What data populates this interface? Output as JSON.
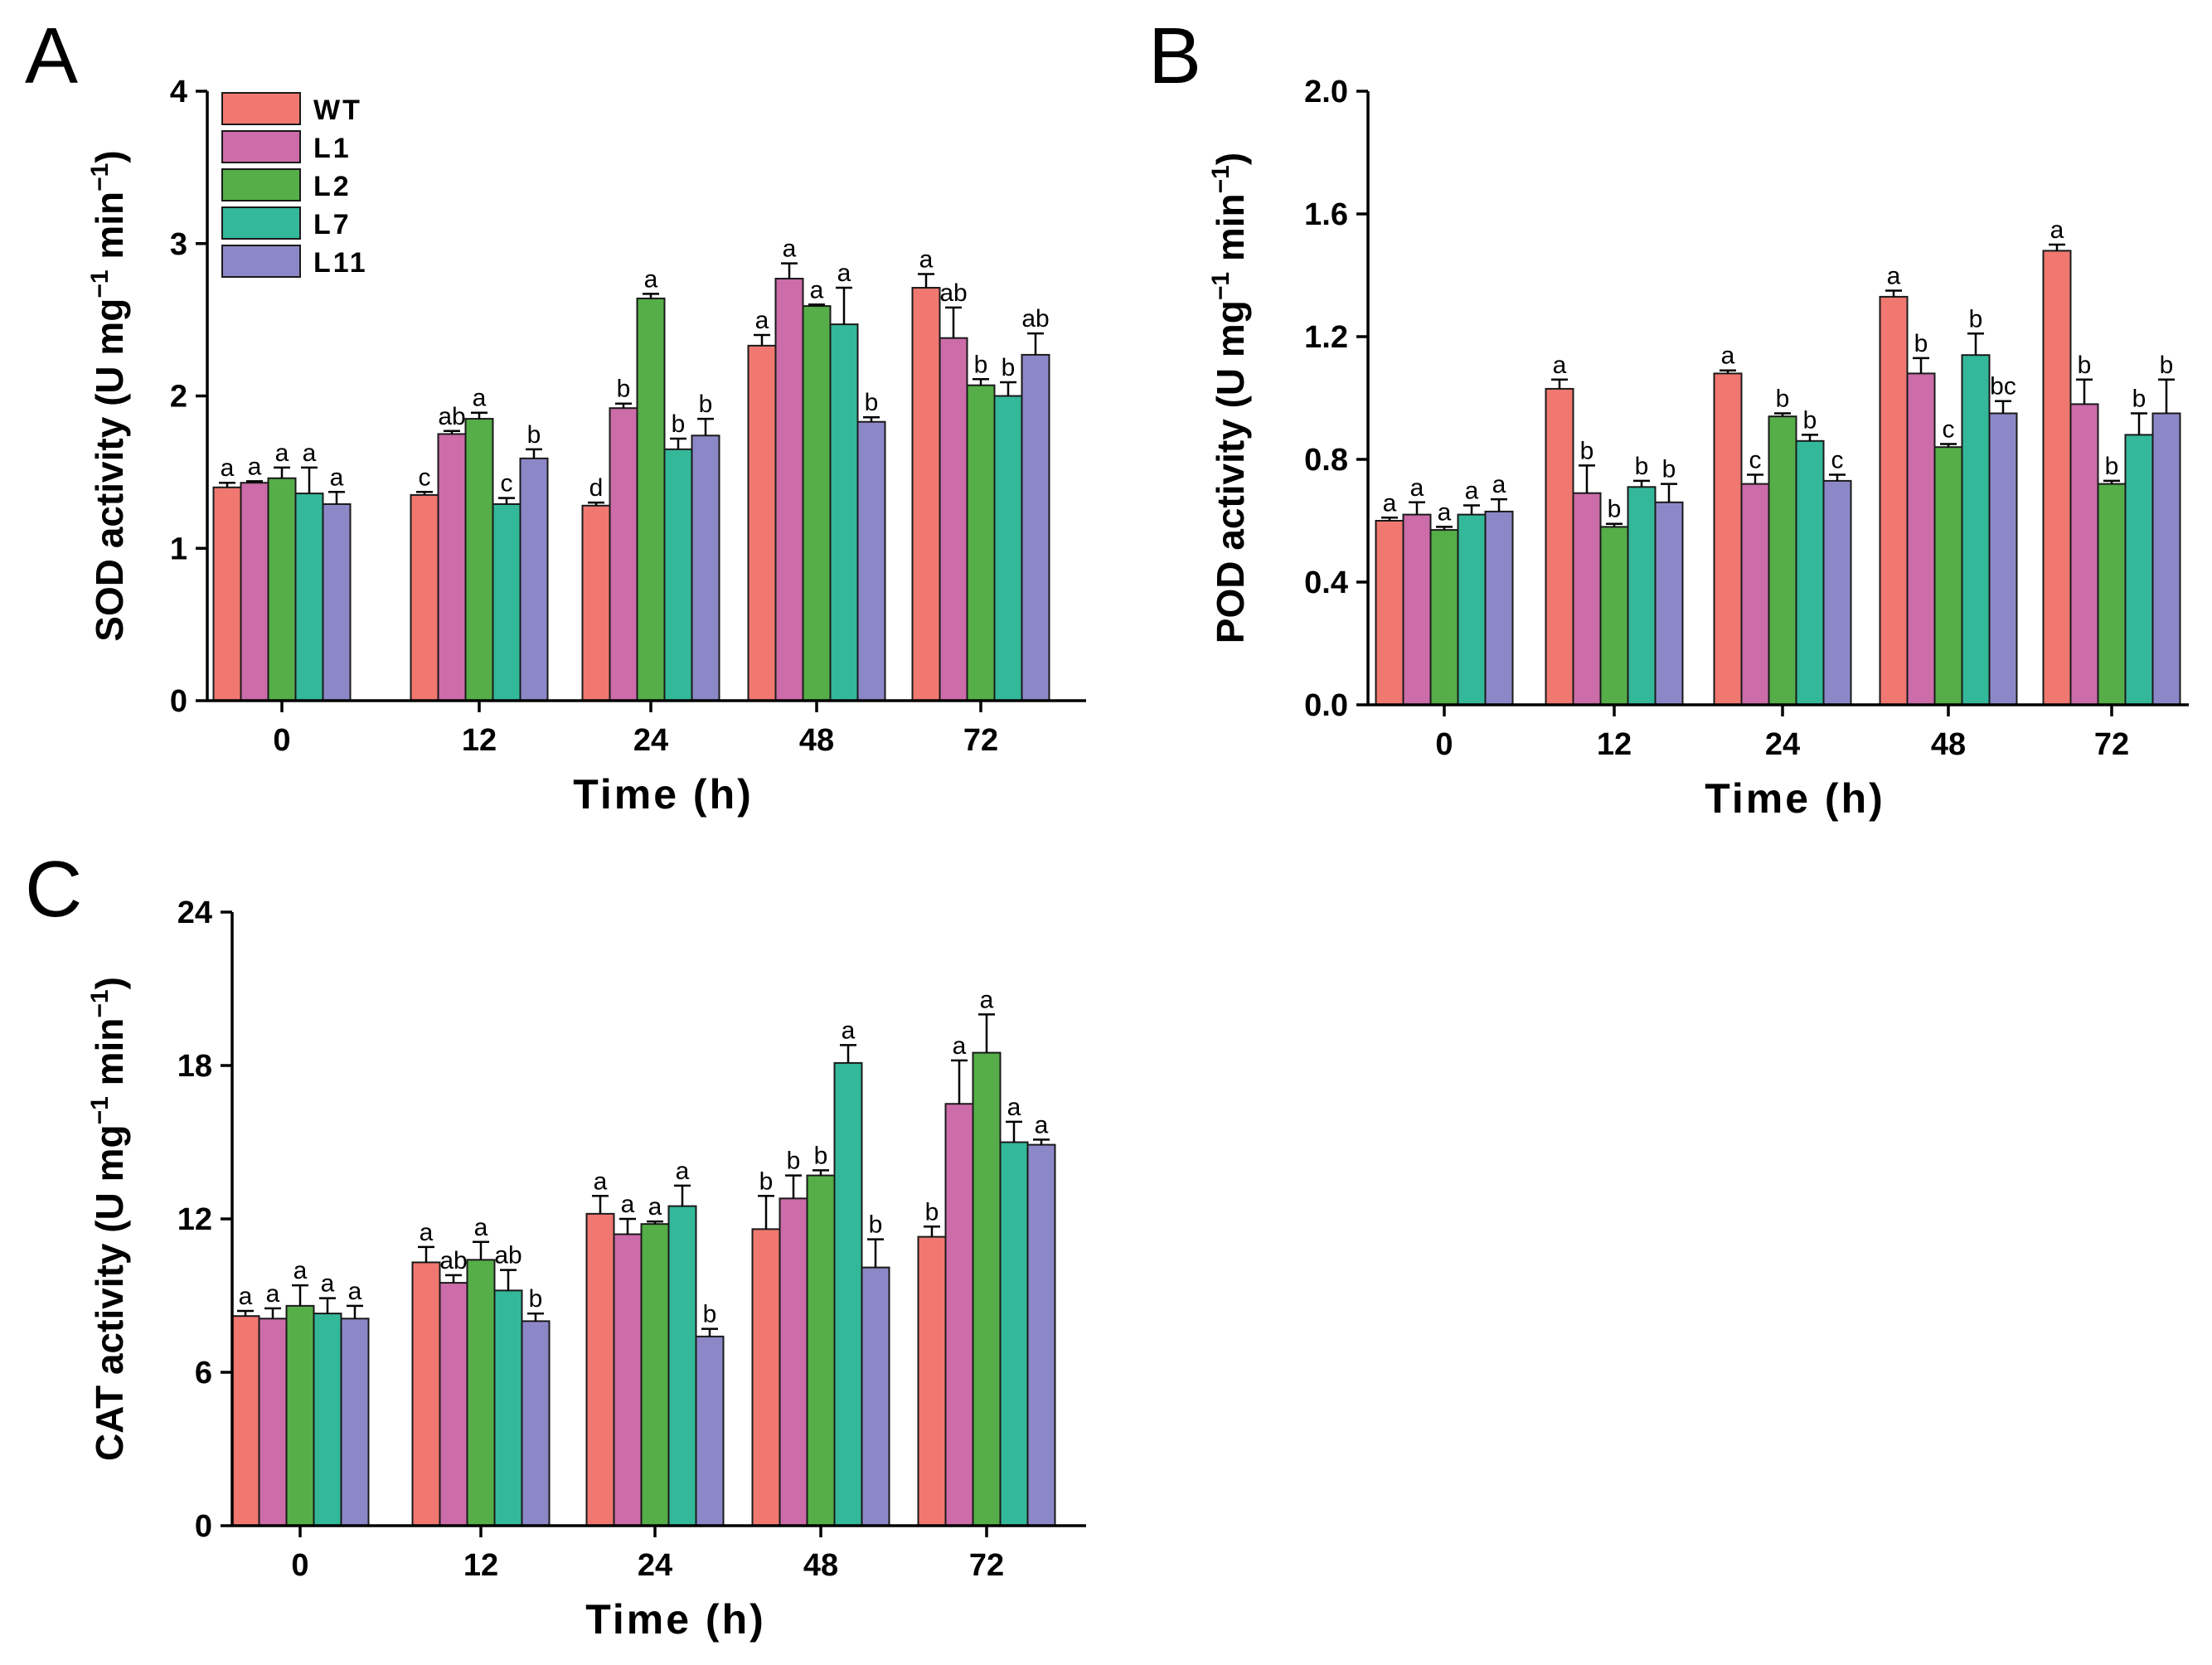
{
  "chart_data": [
    {
      "type": "bar",
      "panel": "A",
      "title": "",
      "xlabel": "Time (h)",
      "ylabel": "SOD activity (U mg",
      "ylabel_sup": "−1",
      "ylabel_mid": " min",
      "ylabel_tail": ")",
      "ylim": [
        0,
        4
      ],
      "yticks": [
        "0",
        "1",
        "2",
        "3",
        "4"
      ],
      "categories": [
        "0",
        "12",
        "24",
        "48",
        "72"
      ],
      "legend": "top-left",
      "series": [
        {
          "name": "WT",
          "color": "#F07870",
          "values": [
            1.4,
            1.35,
            1.28,
            2.33,
            2.71
          ],
          "errors": [
            0.03,
            0.02,
            0.02,
            0.07,
            0.09
          ],
          "letters": [
            "a",
            "c",
            "d",
            "a",
            "a"
          ]
        },
        {
          "name": "L1",
          "color": "#CC6CA8",
          "values": [
            1.43,
            1.75,
            1.92,
            2.77,
            2.38
          ],
          "errors": [
            0.01,
            0.02,
            0.03,
            0.1,
            0.2
          ],
          "letters": [
            "a",
            "ab",
            "b",
            "a",
            "ab"
          ]
        },
        {
          "name": "L2",
          "color": "#55AE48",
          "values": [
            1.46,
            1.85,
            2.64,
            2.59,
            2.07
          ],
          "errors": [
            0.07,
            0.04,
            0.03,
            0.01,
            0.04
          ],
          "letters": [
            "a",
            "a",
            "a",
            "a",
            "b"
          ]
        },
        {
          "name": "L7",
          "color": "#34B89A",
          "values": [
            1.36,
            1.29,
            1.65,
            2.47,
            2.0
          ],
          "errors": [
            0.17,
            0.04,
            0.07,
            0.24,
            0.09
          ],
          "letters": [
            "a",
            "c",
            "b",
            "a",
            "b"
          ]
        },
        {
          "name": "L11",
          "color": "#8C88C8",
          "values": [
            1.29,
            1.59,
            1.74,
            1.83,
            2.27
          ],
          "errors": [
            0.08,
            0.06,
            0.11,
            0.03,
            0.14
          ],
          "letters": [
            "a",
            "b",
            "b",
            "b",
            "ab"
          ]
        }
      ]
    },
    {
      "type": "bar",
      "panel": "B",
      "title": "",
      "xlabel": "Time (h)",
      "ylabel": "POD activity (U mg",
      "ylabel_sup": "−1",
      "ylabel_mid": " min",
      "ylabel_tail": ")",
      "ylim": [
        0,
        2.0
      ],
      "yticks": [
        "0.0",
        "0.4",
        "0.8",
        "1.2",
        "1.6",
        "2.0"
      ],
      "categories": [
        "0",
        "12",
        "24",
        "48",
        "72"
      ],
      "series": [
        {
          "name": "WT",
          "color": "#F07870",
          "values": [
            0.6,
            1.03,
            1.08,
            1.33,
            1.48
          ],
          "errors": [
            0.01,
            0.03,
            0.01,
            0.02,
            0.02
          ],
          "letters": [
            "a",
            "a",
            "a",
            "a",
            "a"
          ]
        },
        {
          "name": "L1",
          "color": "#CC6CA8",
          "values": [
            0.62,
            0.69,
            0.72,
            1.08,
            0.98
          ],
          "errors": [
            0.04,
            0.09,
            0.03,
            0.05,
            0.08
          ],
          "letters": [
            "a",
            "b",
            "c",
            "b",
            "b"
          ]
        },
        {
          "name": "L2",
          "color": "#55AE48",
          "values": [
            0.57,
            0.58,
            0.94,
            0.84,
            0.72
          ],
          "errors": [
            0.01,
            0.01,
            0.01,
            0.01,
            0.01
          ],
          "letters": [
            "a",
            "b",
            "b",
            "c",
            "b"
          ]
        },
        {
          "name": "L7",
          "color": "#34B89A",
          "values": [
            0.62,
            0.71,
            0.86,
            1.14,
            0.88
          ],
          "errors": [
            0.03,
            0.02,
            0.02,
            0.07,
            0.07
          ],
          "letters": [
            "a",
            "b",
            "b",
            "b",
            "b"
          ]
        },
        {
          "name": "L11",
          "color": "#8C88C8",
          "values": [
            0.63,
            0.66,
            0.73,
            0.95,
            0.95
          ],
          "errors": [
            0.04,
            0.06,
            0.02,
            0.04,
            0.11
          ],
          "letters": [
            "a",
            "b",
            "c",
            "bc",
            "b"
          ]
        }
      ]
    },
    {
      "type": "bar",
      "panel": "C",
      "title": "",
      "xlabel": "Time (h)",
      "ylabel": "CAT activity (U mg",
      "ylabel_sup": "−1",
      "ylabel_mid": " min",
      "ylabel_tail": ")",
      "ylim": [
        0,
        24
      ],
      "yticks": [
        "0",
        "6",
        "12",
        "18",
        "24"
      ],
      "categories": [
        "0",
        "12",
        "24",
        "48",
        "72"
      ],
      "series": [
        {
          "name": "WT",
          "color": "#F07870",
          "values": [
            8.2,
            10.3,
            12.2,
            11.6,
            11.3
          ],
          "errors": [
            0.2,
            0.6,
            0.7,
            1.3,
            0.4
          ],
          "letters": [
            "a",
            "a",
            "a",
            "b",
            "b"
          ]
        },
        {
          "name": "L1",
          "color": "#CC6CA8",
          "values": [
            8.1,
            9.5,
            11.4,
            12.8,
            16.5
          ],
          "errors": [
            0.4,
            0.3,
            0.6,
            0.9,
            1.7
          ],
          "letters": [
            "a",
            "ab",
            "a",
            "b",
            "a"
          ]
        },
        {
          "name": "L2",
          "color": "#55AE48",
          "values": [
            8.6,
            10.4,
            11.8,
            13.7,
            18.5
          ],
          "errors": [
            0.8,
            0.7,
            0.1,
            0.2,
            1.5
          ],
          "letters": [
            "a",
            "a",
            "a",
            "b",
            "a"
          ]
        },
        {
          "name": "L7",
          "color": "#34B89A",
          "values": [
            8.3,
            9.2,
            12.5,
            18.1,
            15.0
          ],
          "errors": [
            0.6,
            0.8,
            0.8,
            0.7,
            0.8
          ],
          "letters": [
            "a",
            "ab",
            "a",
            "a",
            "a"
          ]
        },
        {
          "name": "L11",
          "color": "#8C88C8",
          "values": [
            8.1,
            8.0,
            7.4,
            10.1,
            14.9
          ],
          "errors": [
            0.5,
            0.3,
            0.3,
            1.1,
            0.2
          ],
          "letters": [
            "a",
            "b",
            "b",
            "b",
            "a"
          ]
        }
      ]
    }
  ]
}
